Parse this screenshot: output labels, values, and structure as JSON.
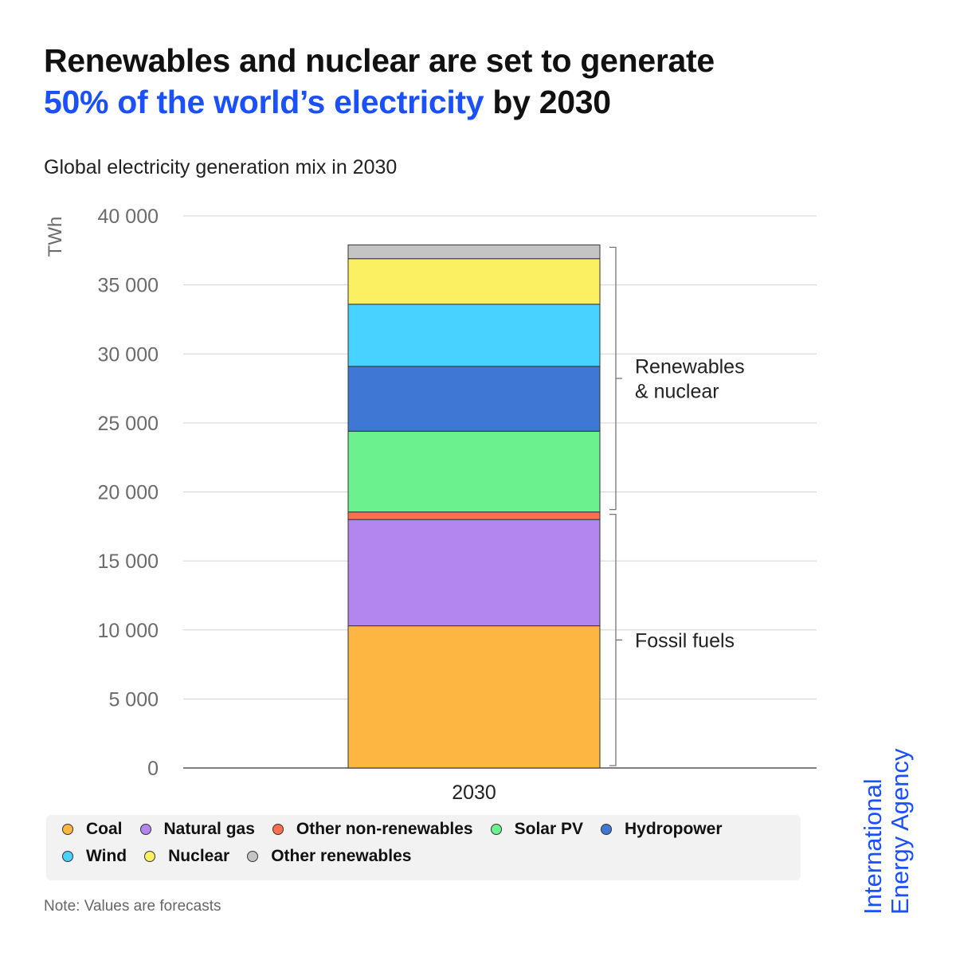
{
  "title": {
    "line1": "Renewables and nuclear are set to generate",
    "line2_accent": "50% of the world’s electricity",
    "line2_rest": " by 2030"
  },
  "subtitle": "Global electricity generation mix in 2030",
  "chart_data": {
    "type": "bar",
    "stacked": true,
    "categories": [
      "2030"
    ],
    "ylabel": "TWh",
    "ylim": [
      0,
      40000
    ],
    "yticks": [
      0,
      5000,
      10000,
      15000,
      20000,
      25000,
      30000,
      35000,
      40000
    ],
    "ytick_labels": [
      "0",
      "5 000",
      "10 000",
      "15 000",
      "20 000",
      "25 000",
      "30 000",
      "35 000",
      "40 000"
    ],
    "grid": true,
    "series": [
      {
        "name": "Coal",
        "values": [
          10300
        ],
        "color": "#FDB642"
      },
      {
        "name": "Natural gas",
        "values": [
          7700
        ],
        "color": "#B286EE"
      },
      {
        "name": "Other non-renewables",
        "values": [
          550
        ],
        "color": "#FF6E4F"
      },
      {
        "name": "Solar PV",
        "values": [
          5850
        ],
        "color": "#6BF28E"
      },
      {
        "name": "Hydropower",
        "values": [
          4700
        ],
        "color": "#3E78D4"
      },
      {
        "name": "Wind",
        "values": [
          4500
        ],
        "color": "#48D2FF"
      },
      {
        "name": "Nuclear",
        "values": [
          3300
        ],
        "color": "#FAF062"
      },
      {
        "name": "Other renewables",
        "values": [
          1000
        ],
        "color": "#C4C4C4"
      }
    ],
    "brackets": [
      {
        "label": "Renewables\n& nuclear",
        "from": 18550,
        "to": 37900
      },
      {
        "label": "Fossil fuels",
        "from": 0,
        "to": 18550
      }
    ],
    "legend_position": "bottom"
  },
  "legend": {
    "row1": [
      {
        "label": "Coal",
        "color": "#FDB642"
      },
      {
        "label": "Natural gas",
        "color": "#B286EE"
      },
      {
        "label": "Other non-renewables",
        "color": "#FF6E4F"
      },
      {
        "label": "Solar PV",
        "color": "#6BF28E"
      },
      {
        "label": "Hydropower",
        "color": "#3E78D4"
      }
    ],
    "row2": [
      {
        "label": "Wind",
        "color": "#48D2FF"
      },
      {
        "label": "Nuclear",
        "color": "#FAF062"
      },
      {
        "label": "Other renewables",
        "color": "#C4C4C4"
      }
    ]
  },
  "note": "Note: Values are forecasts",
  "logo": {
    "line1": "International",
    "line2": "Energy Agency",
    "color": "#1a50ff"
  }
}
